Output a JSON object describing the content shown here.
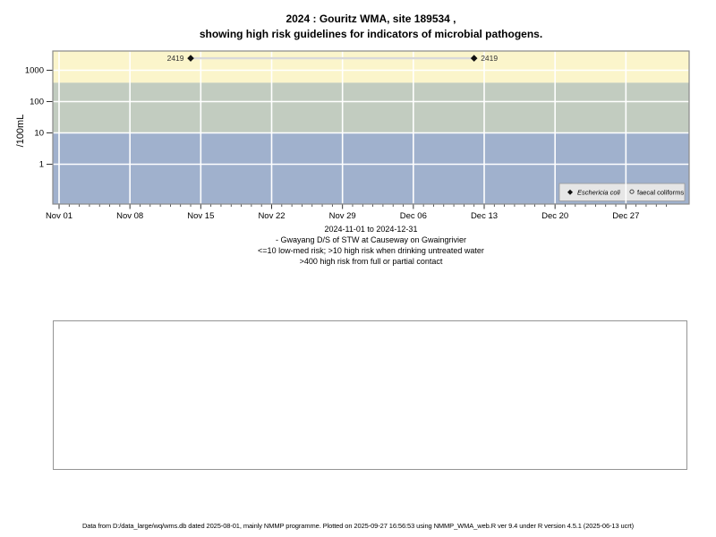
{
  "title": {
    "line1": "2024 : Gouritz WMA, site 189534 ,",
    "line2": "showing high risk guidelines for indicators of microbial pathogens."
  },
  "chart_data": {
    "type": "scatter",
    "title": "2024 : Gouritz WMA, site 189534 , showing high risk guidelines for indicators of microbial pathogens.",
    "ylabel": "/100mL",
    "y_axis": {
      "scale": "log10",
      "tick_values": [
        1,
        10,
        100,
        1000
      ],
      "tick_labels": [
        "1",
        "10",
        "100",
        "1000"
      ],
      "ylim": [
        0.05,
        4000
      ],
      "gridlines": true
    },
    "x_axis": {
      "start": "2024-11-01",
      "end": "2024-12-31",
      "minor_tick_days": 1,
      "major_tick_days": 7,
      "major_tick_labels": [
        "Nov 01",
        "Nov 08",
        "Nov 15",
        "Nov 22",
        "Nov 29",
        "Dec 06",
        "Dec 13",
        "Dec 20",
        "Dec 27"
      ]
    },
    "risk_bands": [
      {
        "name": "high-risk-full-partial-contact",
        "from": 400,
        "to": 4000,
        "color": "#FBF5CB"
      },
      {
        "name": "high-risk-drinking-untreated",
        "from": 10,
        "to": 400,
        "color": "#C2CCC0"
      },
      {
        "name": "low-med-risk",
        "from": 0.05,
        "to": 10,
        "color": "#A0B1CD"
      }
    ],
    "series": [
      {
        "name": "Eschericia coli",
        "marker": "filled-diamond",
        "marker_color": "#111111",
        "connect": true,
        "line_color": "#D8D8D8",
        "points": [
          {
            "date": "2024-11-14",
            "value": 2419,
            "label": "2419"
          },
          {
            "date": "2024-12-12",
            "value": 2419,
            "label": "2419"
          }
        ]
      },
      {
        "name": "faecal coliforms",
        "marker": "open-circle",
        "marker_color": "#333333",
        "connect": false,
        "points": []
      }
    ],
    "legend": {
      "position": "bottom-right",
      "bg": "#E6E6E6",
      "border": "#999999",
      "entries": [
        {
          "marker": "filled-diamond",
          "label": "Eschericia coli",
          "italic": true
        },
        {
          "marker": "open-circle",
          "label": "faecal coliforms",
          "italic": false
        }
      ]
    }
  },
  "caption": {
    "line1": "2024-11-01 to 2024-12-31",
    "line2": "- Gwayang D/S of STW at Causeway on Gwaingrivier",
    "line3": "<=10 low-med risk; >10 high risk when drinking untreated water",
    "line4": ">400 high risk from full or partial contact"
  },
  "footer": "Data from D:/data_large/wq/wms.db dated 2025-08-01, mainly NMMP programme. Plotted on 2025-09-27 16:56:53 using NMMP_WMA_web.R ver 9.4 under R version 4.5.1 (2025-06-13 ucrt)"
}
